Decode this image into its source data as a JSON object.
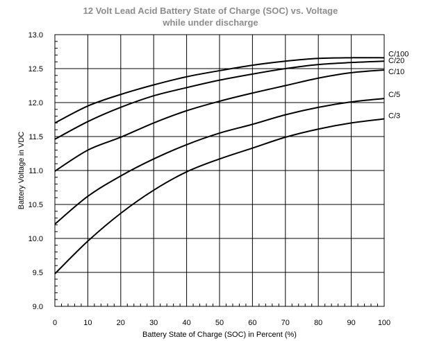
{
  "chart_data": {
    "type": "line",
    "title": "12 Volt Lead Acid Battery State of Charge (SOC) vs. Voltage",
    "subtitle": "while under discharge",
    "xlabel": "Battery State of Charge (SOC) in Percent (%)",
    "ylabel": "Battery Voltage in VDC",
    "xlim": [
      0,
      100
    ],
    "ylim": [
      9.0,
      13.0
    ],
    "xticks": [
      "0",
      "10",
      "20",
      "30",
      "40",
      "50",
      "60",
      "70",
      "80",
      "90",
      "100"
    ],
    "yticks": [
      "9.0",
      "9.5",
      "10.0",
      "10.5",
      "11.0",
      "11.5",
      "12.0",
      "12.5",
      "13.0"
    ],
    "grid": true,
    "legend": "inline labels at right end of curves",
    "x": [
      0,
      10,
      20,
      30,
      40,
      50,
      60,
      70,
      80,
      90,
      100
    ],
    "series": [
      {
        "name": "C/100",
        "values": [
          11.7,
          11.95,
          12.12,
          12.26,
          12.38,
          12.47,
          12.55,
          12.61,
          12.65,
          12.66,
          12.66
        ]
      },
      {
        "name": "C/20",
        "values": [
          11.46,
          11.72,
          11.93,
          12.1,
          12.22,
          12.33,
          12.42,
          12.5,
          12.56,
          12.59,
          12.61
        ]
      },
      {
        "name": "C/10",
        "values": [
          10.99,
          11.3,
          11.49,
          11.7,
          11.88,
          12.02,
          12.14,
          12.25,
          12.36,
          12.44,
          12.48
        ]
      },
      {
        "name": "C/5",
        "values": [
          10.21,
          10.62,
          10.92,
          11.17,
          11.38,
          11.55,
          11.68,
          11.82,
          11.93,
          12.01,
          12.06
        ]
      },
      {
        "name": "C/3",
        "values": [
          9.48,
          9.96,
          10.37,
          10.71,
          10.98,
          11.17,
          11.33,
          11.49,
          11.61,
          11.7,
          11.76
        ]
      }
    ],
    "label_offsets": {
      "C/100": 0,
      "C/20": 0,
      "C/10": 0,
      "C/5": 0,
      "C/3": 0
    }
  }
}
